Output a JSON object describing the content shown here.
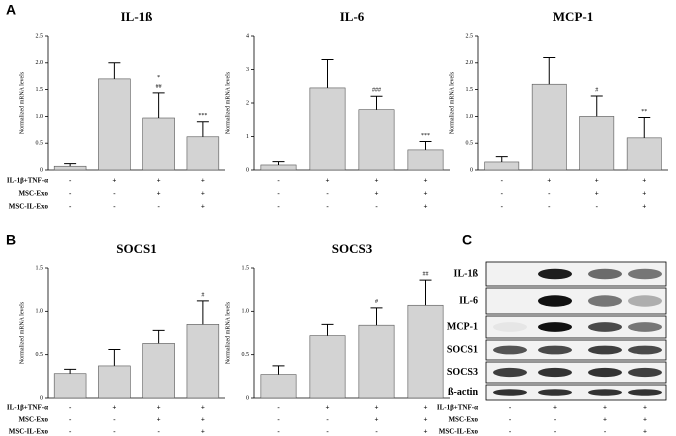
{
  "panels": [
    "A",
    "B",
    "C"
  ],
  "treatments": {
    "labels": [
      "IL-1β+TNF-α",
      "MSC-Exo",
      "MSC-IL-Exo"
    ],
    "signs": [
      [
        "-",
        "+",
        "+",
        "+"
      ],
      [
        "-",
        "-",
        "+",
        "+"
      ],
      [
        "-",
        "-",
        "-",
        "+"
      ]
    ]
  },
  "chart_data": [
    {
      "type": "bar",
      "title": "IL-1ß",
      "y_label": "Normalized mRNA levels",
      "color": "#d3d3d3",
      "values": [
        0.07,
        1.7,
        0.97,
        0.62
      ],
      "errors": [
        0.05,
        0.3,
        0.47,
        0.28
      ],
      "annotations": [
        null,
        null,
        [
          "*",
          "##"
        ],
        [
          "***"
        ]
      ],
      "ylim": [
        0,
        2.5
      ],
      "yticks": [
        0,
        {
          "value": 0.5,
          "label": "0.5"
        },
        {
          "value": 1,
          "label": "1.0"
        },
        {
          "value": 1.5,
          "label": "1.5"
        },
        {
          "value": 2,
          "label": "2.0"
        },
        {
          "value": 2.5,
          "label": "2.5"
        }
      ]
    },
    {
      "type": "bar",
      "title": "IL-6",
      "y_label": "Normalized mRNA levels",
      "color": "#d3d3d3",
      "values": [
        0.15,
        2.45,
        1.8,
        0.6
      ],
      "errors": [
        0.1,
        0.85,
        0.4,
        0.25
      ],
      "annotations": [
        null,
        null,
        [
          "###"
        ],
        [
          "***"
        ]
      ],
      "ylim": [
        0,
        4
      ],
      "yticks": [
        0,
        1,
        2,
        3,
        4
      ]
    },
    {
      "type": "bar",
      "title": "MCP-1",
      "y_label": "Normalized mRNA levels",
      "color": "#d3d3d3",
      "values": [
        0.15,
        1.6,
        1.0,
        0.6
      ],
      "errors": [
        0.1,
        0.5,
        0.38,
        0.38
      ],
      "annotations": [
        null,
        null,
        [
          "#"
        ],
        [
          "**"
        ]
      ],
      "ylim": [
        0,
        2.5
      ],
      "yticks": [
        0,
        {
          "value": 0.5,
          "label": "0.5"
        },
        {
          "value": 1,
          "label": "1.0"
        },
        {
          "value": 1.5,
          "label": "1.5"
        },
        {
          "value": 2,
          "label": "2.0"
        },
        {
          "value": 2.5,
          "label": "2.5"
        }
      ]
    },
    {
      "type": "bar",
      "title": "SOCS1",
      "y_label": "Normalized mRNA levels",
      "color": "#d3d3d3",
      "values": [
        0.28,
        0.37,
        0.63,
        0.85
      ],
      "errors": [
        0.05,
        0.19,
        0.15,
        0.27
      ],
      "annotations": [
        null,
        null,
        null,
        [
          "#"
        ]
      ],
      "ylim": [
        0,
        1.5
      ],
      "yticks": [
        0,
        {
          "value": 0.5,
          "label": "0.5"
        },
        {
          "value": 1,
          "label": "1.0"
        },
        {
          "value": 1.5,
          "label": "1.5"
        }
      ]
    },
    {
      "type": "bar",
      "title": "SOCS3",
      "y_label": "Normalized mRNA levels",
      "color": "#d3d3d3",
      "values": [
        0.27,
        0.72,
        0.84,
        1.07
      ],
      "errors": [
        0.1,
        0.13,
        0.2,
        0.29
      ],
      "annotations": [
        null,
        null,
        [
          "#"
        ],
        [
          "##"
        ]
      ],
      "ylim": [
        0,
        1.5
      ],
      "yticks": [
        0,
        {
          "value": 0.5,
          "label": "0.5"
        },
        {
          "value": 1,
          "label": "1.0"
        },
        {
          "value": 1.5,
          "label": "1.5"
        }
      ]
    }
  ],
  "blot": {
    "bands": [
      "IL-1ß",
      "IL-6",
      "MCP-1",
      "SOCS1",
      "SOCS3",
      "ß-actin"
    ]
  }
}
